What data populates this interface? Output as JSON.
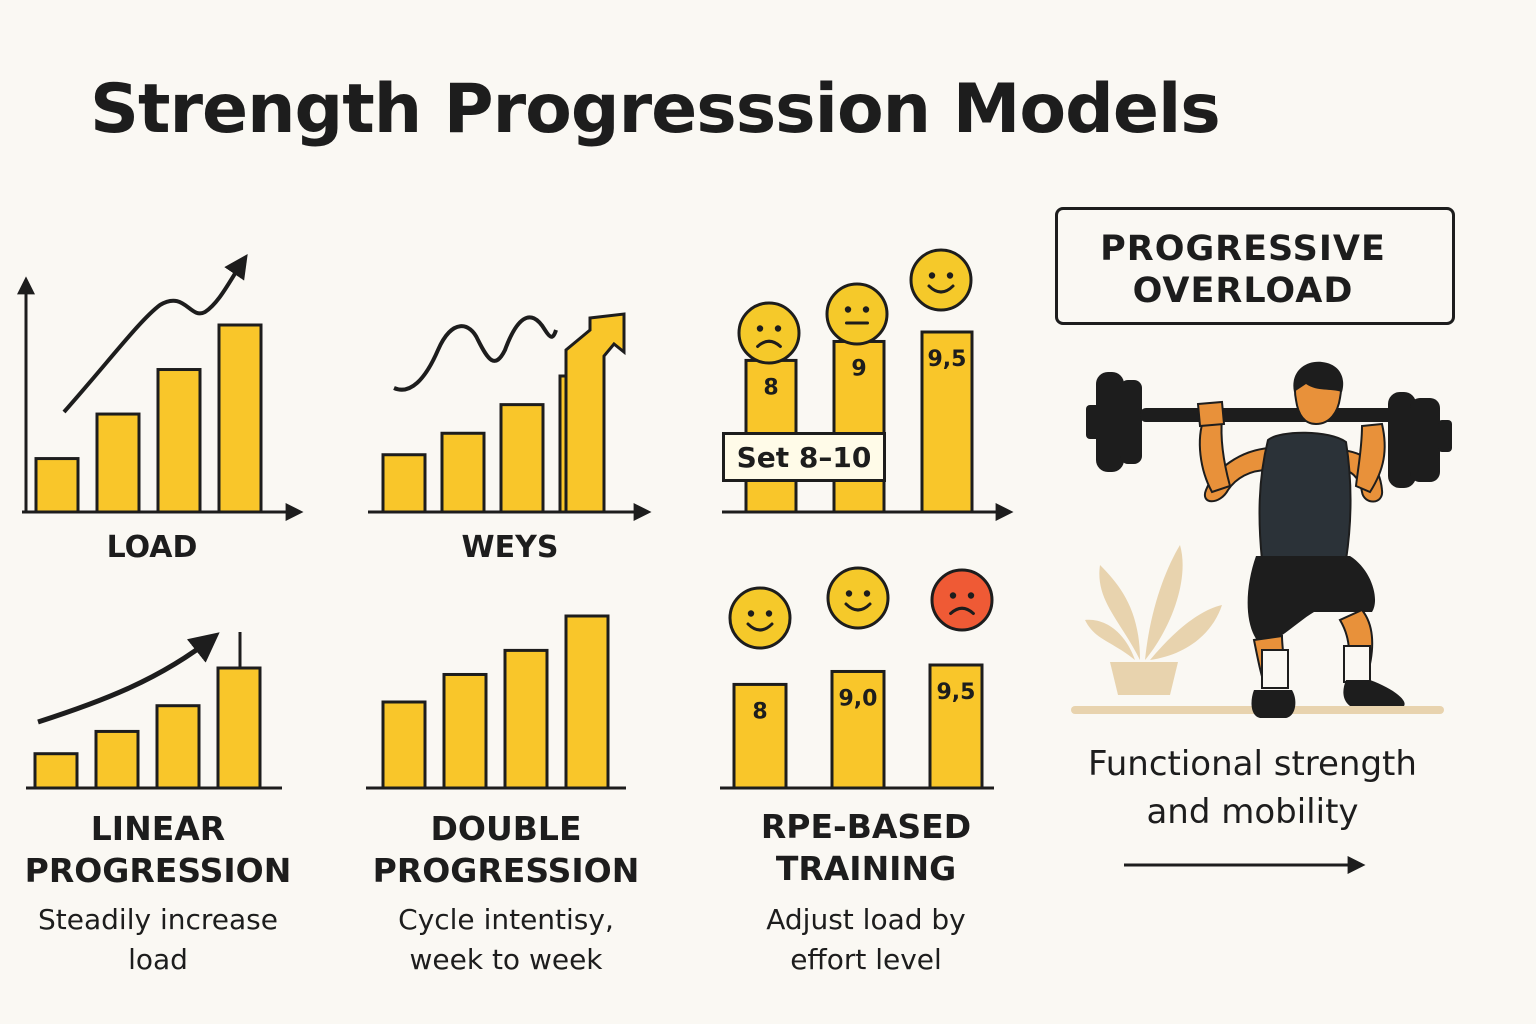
{
  "title": "Strength Progresssion Models",
  "colors": {
    "bar": "#f9c62a",
    "stroke": "#1d1d1d",
    "happy_face": "#f5c92a",
    "sad_face_red": "#ef5a35",
    "background": "#faf8f3",
    "plant": "#e8d3ae"
  },
  "top_charts": {
    "load": {
      "caption": "LOAD",
      "values": [
        3,
        5.5,
        8,
        10.5
      ]
    },
    "weys": {
      "caption": "WEYS",
      "values": [
        4,
        5.5,
        7.5,
        9.5
      ]
    },
    "rpe_top": {
      "values": [
        8,
        9,
        9.5
      ],
      "labels": [
        "8",
        "9",
        "9,5"
      ],
      "faces": [
        "neutral-sad",
        "neutral",
        "happy"
      ],
      "set_label": "Set 8–10"
    }
  },
  "bottom_charts": {
    "linear": {
      "values": [
        2,
        3.3,
        4.8,
        7
      ]
    },
    "double": {
      "values": [
        5,
        6.6,
        8,
        10
      ]
    },
    "rpe_bottom": {
      "values": [
        8,
        9,
        9.5
      ],
      "labels": [
        "8",
        "9,0",
        "9,5"
      ],
      "faces": [
        "happy",
        "happy",
        "sad-red"
      ]
    }
  },
  "models": [
    {
      "heading_line1": "LINEAR",
      "heading_line2": "PROGRESSION",
      "desc_line1": "Steadily increase",
      "desc_line2": "load"
    },
    {
      "heading_line1": "DOUBLE",
      "heading_line2": "PROGRESSION",
      "desc_line1": "Cycle intentisy,",
      "desc_line2": "week to week"
    },
    {
      "heading_line1": "RPE-BASED",
      "heading_line2": "TRAINING",
      "desc_line1": "Adjust load by",
      "desc_line2": "effort level"
    }
  ],
  "overload": {
    "line1": "PROGRESSIVE",
    "line2": "OVERLOAD"
  },
  "functional": {
    "line1": "Functional strength",
    "line2": "and mobility"
  },
  "icons": [
    "trend-arrow-icon",
    "smiley-face-icon",
    "up-arrow-icon",
    "right-arrow-icon",
    "weightlifter-illustration",
    "plant-icon"
  ]
}
